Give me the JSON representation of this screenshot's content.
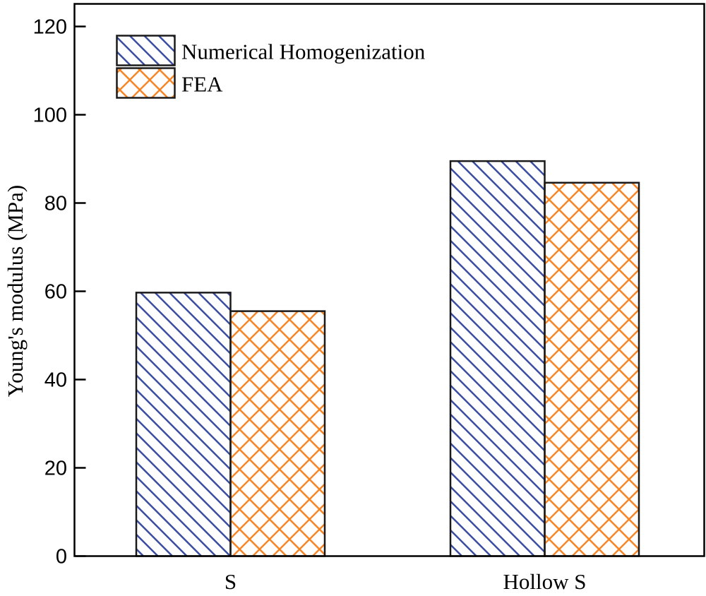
{
  "chart_data": {
    "type": "bar",
    "title": "",
    "xlabel": "",
    "ylabel": "Young's modulus (MPa)",
    "categories": [
      "S",
      "Hollow S"
    ],
    "series": [
      {
        "name": "Numerical Homogenization",
        "values": [
          59.7,
          89.5
        ],
        "color": "#3A4DA0",
        "hatch": "diagonal"
      },
      {
        "name": "FEA",
        "values": [
          55.5,
          84.6
        ],
        "color": "#F58220",
        "hatch": "cross"
      }
    ],
    "ylim": [
      0,
      125
    ],
    "yticks": [
      0,
      20,
      40,
      60,
      80,
      100,
      120
    ],
    "grid": false,
    "legend_position": "top-left"
  },
  "colors": {
    "axis": "#000000",
    "bar_edge": "#1a1a1a",
    "background": "#ffffff",
    "blue_hatch": "#3A4DA0",
    "orange_hatch": "#F58220"
  }
}
